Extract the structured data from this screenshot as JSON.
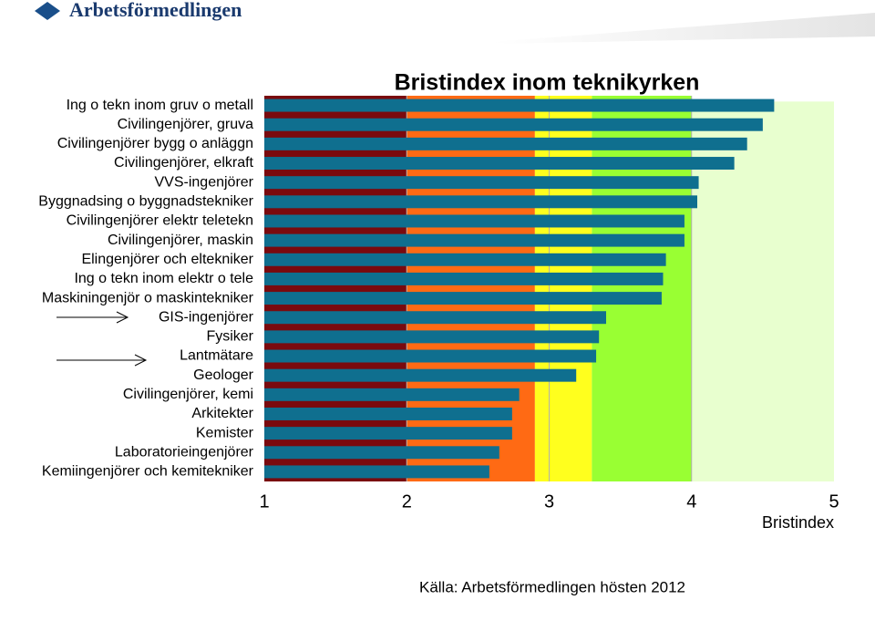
{
  "header": {
    "logo": "Arbetsförmedlingen"
  },
  "chart_data": {
    "type": "barh",
    "title": "Bristindex inom teknikyrken",
    "x_label": "Bristindex",
    "categories": [
      "Ing o tekn inom gruv o metall",
      "Civilingenjörer, gruva",
      "Civilingenjörer bygg o anläggn",
      "Civilingenjörer, elkraft",
      "VVS-ingenjörer",
      "Byggnadsing o byggnadstekniker",
      "Civilingenjörer elektr teletekn",
      "Civilingenjörer, maskin",
      "Elingenjörer och eltekniker",
      "Ing o tekn inom elektr o tele",
      "Maskiningenjör o maskintekniker",
      "GIS-ingenjörer",
      "Fysiker",
      "Lantmätare",
      "Geologer",
      "Civilingenjörer, kemi",
      "Arkitekter",
      "Kemister",
      "Laboratorieingenjörer",
      "Kemiingenjörer och kemitekniker"
    ],
    "values": [
      4.58,
      4.5,
      4.39,
      4.3,
      4.05,
      4.04,
      3.95,
      3.95,
      3.82,
      3.8,
      3.79,
      3.4,
      3.35,
      3.33,
      3.19,
      2.79,
      2.74,
      2.74,
      2.65,
      2.58
    ],
    "color": "#0f6f8f",
    "xlim": [
      1,
      5
    ],
    "xticks": [
      1,
      2,
      3,
      4,
      5
    ],
    "grid": true,
    "zones": [
      {
        "from": 1,
        "to": 2,
        "color": "#7a0a0e"
      },
      {
        "from": 2,
        "to": 2.9,
        "color": "#ff6a14"
      },
      {
        "from": 2.9,
        "to": 3.3,
        "color": "#ffff1e"
      },
      {
        "from": 3.3,
        "to": 4,
        "color": "#99ff33"
      },
      {
        "from": 4,
        "to": 5,
        "color": "#e8ffcf"
      }
    ]
  },
  "footer": {
    "source": "Källa: Arbetsförmedlingen hösten 2012"
  }
}
